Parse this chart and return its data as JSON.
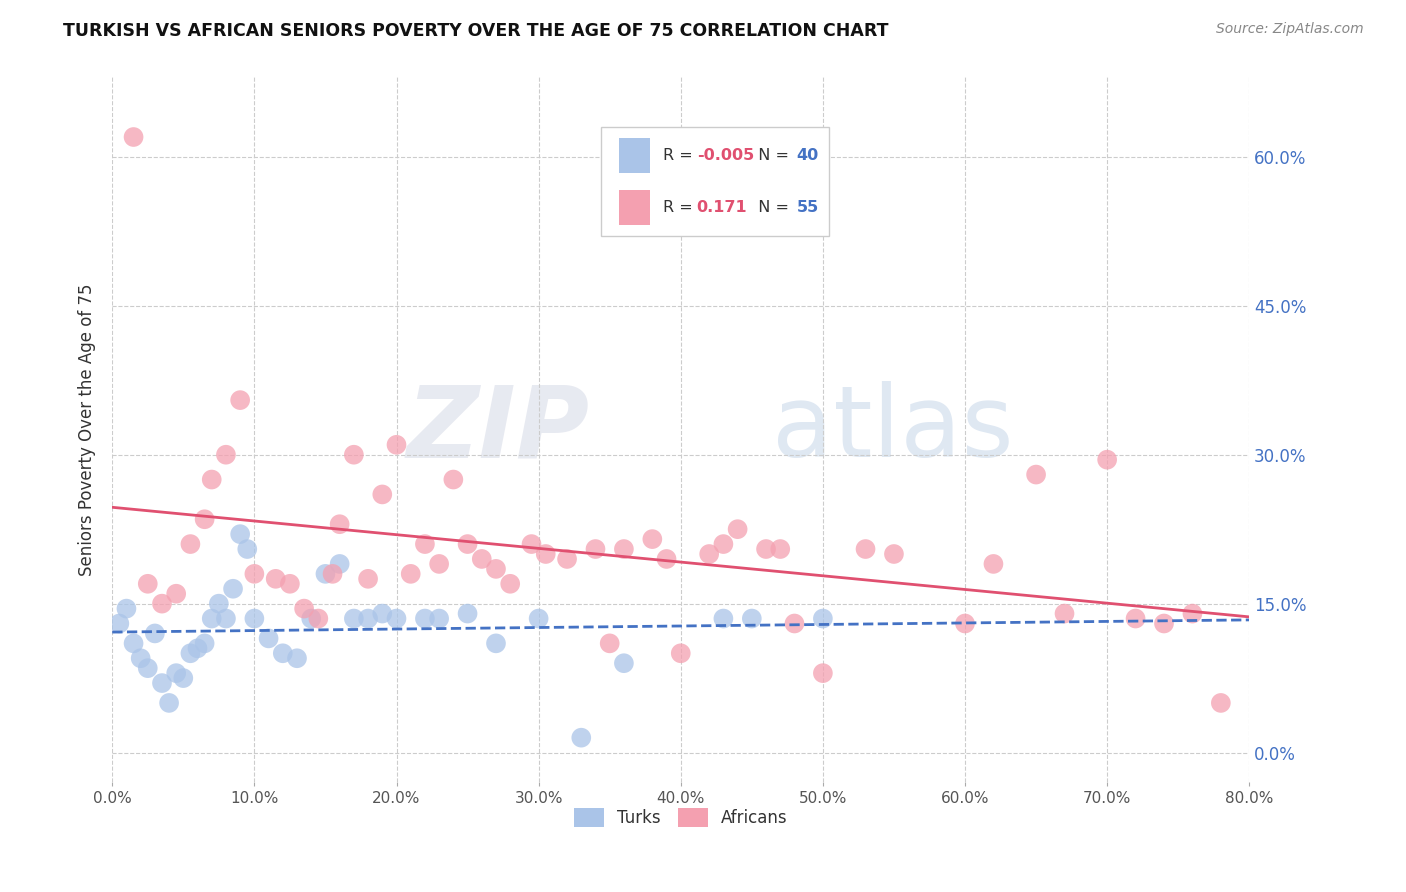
{
  "title": "TURKISH VS AFRICAN SENIORS POVERTY OVER THE AGE OF 75 CORRELATION CHART",
  "source": "Source: ZipAtlas.com",
  "ylabel": "Seniors Poverty Over the Age of 75",
  "xlim": [
    0,
    80
  ],
  "ylim": [
    -3,
    68
  ],
  "ytick_vals": [
    0,
    15,
    30,
    45,
    60
  ],
  "xtick_vals": [
    0,
    10,
    20,
    30,
    40,
    50,
    60,
    70,
    80
  ],
  "grid_color": "#cccccc",
  "background_color": "#ffffff",
  "legend_r_turks": "-0.005",
  "legend_n_turks": "40",
  "legend_r_africans": "0.171",
  "legend_n_africans": "55",
  "turk_color": "#aac4e8",
  "african_color": "#f4a0b0",
  "turk_line_color": "#4472c4",
  "african_line_color": "#e05070",
  "right_tick_color": "#4472c4",
  "turks_x": [
    0.5,
    1.0,
    1.5,
    2.0,
    2.5,
    3.0,
    3.5,
    4.0,
    4.5,
    5.0,
    5.5,
    6.0,
    6.5,
    7.0,
    7.5,
    8.0,
    8.5,
    9.0,
    9.5,
    10.0,
    11.0,
    12.0,
    13.0,
    14.0,
    15.0,
    16.0,
    17.0,
    18.0,
    19.0,
    20.0,
    22.0,
    23.0,
    25.0,
    27.0,
    30.0,
    33.0,
    36.0,
    43.0,
    45.0,
    50.0
  ],
  "turks_y": [
    13.0,
    14.5,
    11.0,
    9.5,
    8.5,
    12.0,
    7.0,
    5.0,
    8.0,
    7.5,
    10.0,
    10.5,
    11.0,
    13.5,
    15.0,
    13.5,
    16.5,
    22.0,
    20.5,
    13.5,
    11.5,
    10.0,
    9.5,
    13.5,
    18.0,
    19.0,
    13.5,
    13.5,
    14.0,
    13.5,
    13.5,
    13.5,
    14.0,
    11.0,
    13.5,
    1.5,
    9.0,
    13.5,
    13.5,
    13.5
  ],
  "africans_x": [
    1.5,
    2.5,
    3.5,
    4.5,
    5.5,
    6.5,
    7.0,
    8.0,
    9.0,
    10.0,
    11.5,
    12.5,
    13.5,
    14.5,
    15.5,
    16.0,
    17.0,
    18.0,
    19.0,
    20.0,
    21.0,
    22.0,
    23.0,
    24.0,
    25.0,
    26.0,
    27.0,
    28.0,
    29.5,
    30.5,
    32.0,
    34.0,
    36.0,
    38.0,
    40.0,
    42.0,
    44.0,
    46.0,
    48.0,
    50.0,
    53.0,
    55.0,
    60.0,
    62.0,
    65.0,
    67.0,
    70.0,
    72.0,
    74.0,
    76.0,
    78.0,
    35.0,
    39.0,
    43.0,
    47.0
  ],
  "africans_y": [
    62.0,
    17.0,
    15.0,
    16.0,
    21.0,
    23.5,
    27.5,
    30.0,
    35.5,
    18.0,
    17.5,
    17.0,
    14.5,
    13.5,
    18.0,
    23.0,
    30.0,
    17.5,
    26.0,
    31.0,
    18.0,
    21.0,
    19.0,
    27.5,
    21.0,
    19.5,
    18.5,
    17.0,
    21.0,
    20.0,
    19.5,
    20.5,
    20.5,
    21.5,
    10.0,
    20.0,
    22.5,
    20.5,
    13.0,
    8.0,
    20.5,
    20.0,
    13.0,
    19.0,
    28.0,
    14.0,
    29.5,
    13.5,
    13.0,
    14.0,
    5.0,
    11.0,
    19.5,
    21.0,
    20.5
  ]
}
